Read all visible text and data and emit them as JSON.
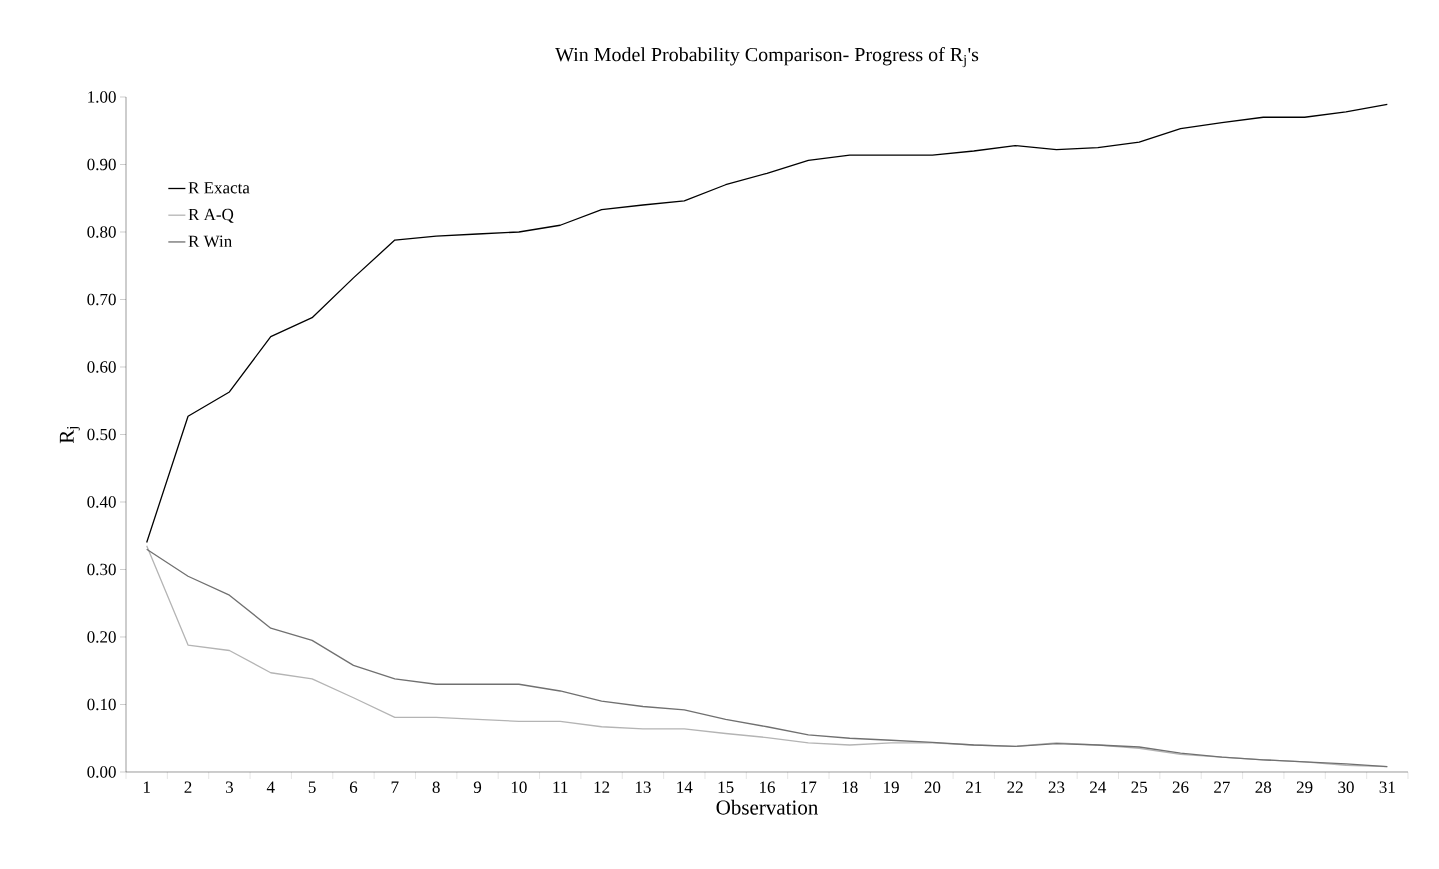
{
  "chart_data": {
    "type": "line",
    "title": "Win Model Probability Comparison- Progress of R$_{j}$'s",
    "xlabel": "Observation",
    "ylabel": "R$_{j}$",
    "categories": [
      "1",
      "2",
      "3",
      "4",
      "5",
      "6",
      "7",
      "8",
      "9",
      "10",
      "11",
      "12",
      "13",
      "14",
      "15",
      "16",
      "17",
      "18",
      "19",
      "20",
      "21",
      "22",
      "23",
      "24",
      "25",
      "26",
      "27",
      "28",
      "29",
      "30",
      "31"
    ],
    "series": [
      {
        "name": "R Exacta",
        "color": "#000000",
        "values": [
          0.34,
          0.527,
          0.563,
          0.645,
          0.673,
          0.732,
          0.788,
          0.794,
          0.797,
          0.8,
          0.81,
          0.833,
          0.84,
          0.846,
          0.87,
          0.887,
          0.906,
          0.914,
          0.914,
          0.914,
          0.92,
          0.928,
          0.922,
          0.925,
          0.933,
          0.953,
          0.962,
          0.97,
          0.97,
          0.978,
          0.989
        ]
      },
      {
        "name": "R A-Q",
        "color": "#b4b4b4",
        "values": [
          0.335,
          0.188,
          0.18,
          0.147,
          0.138,
          0.11,
          0.081,
          0.081,
          0.078,
          0.075,
          0.075,
          0.067,
          0.064,
          0.064,
          0.057,
          0.051,
          0.043,
          0.04,
          0.043,
          0.043,
          0.04,
          0.038,
          0.043,
          0.04,
          0.035,
          0.026,
          0.022,
          0.018,
          0.015,
          0.01,
          0.008
        ]
      },
      {
        "name": "R Win",
        "color": "#707070",
        "values": [
          0.33,
          0.29,
          0.262,
          0.213,
          0.195,
          0.158,
          0.138,
          0.13,
          0.13,
          0.13,
          0.12,
          0.105,
          0.097,
          0.092,
          0.078,
          0.067,
          0.055,
          0.05,
          0.047,
          0.044,
          0.04,
          0.038,
          0.042,
          0.04,
          0.037,
          0.028,
          0.022,
          0.018,
          0.015,
          0.012,
          0.008
        ]
      }
    ],
    "ylim": [
      0,
      1
    ],
    "yticks": [
      {
        "value": 0,
        "label": "0.00"
      },
      {
        "value": 0.1,
        "label": "0.10"
      },
      {
        "value": 0.2,
        "label": "0.20"
      },
      {
        "value": 0.3,
        "label": "0.30"
      },
      {
        "value": 0.4,
        "label": "0.40"
      },
      {
        "value": 0.5,
        "label": "0.50"
      },
      {
        "value": 0.6,
        "label": "0.60"
      },
      {
        "value": 0.7,
        "label": "0.70"
      },
      {
        "value": 0.8,
        "label": "0.80"
      },
      {
        "value": 0.9,
        "label": "0.90"
      },
      {
        "value": 1,
        "label": "1.00"
      }
    ],
    "legend": "top left",
    "grid": false,
    "marker": "none",
    "line_style": "solid"
  }
}
